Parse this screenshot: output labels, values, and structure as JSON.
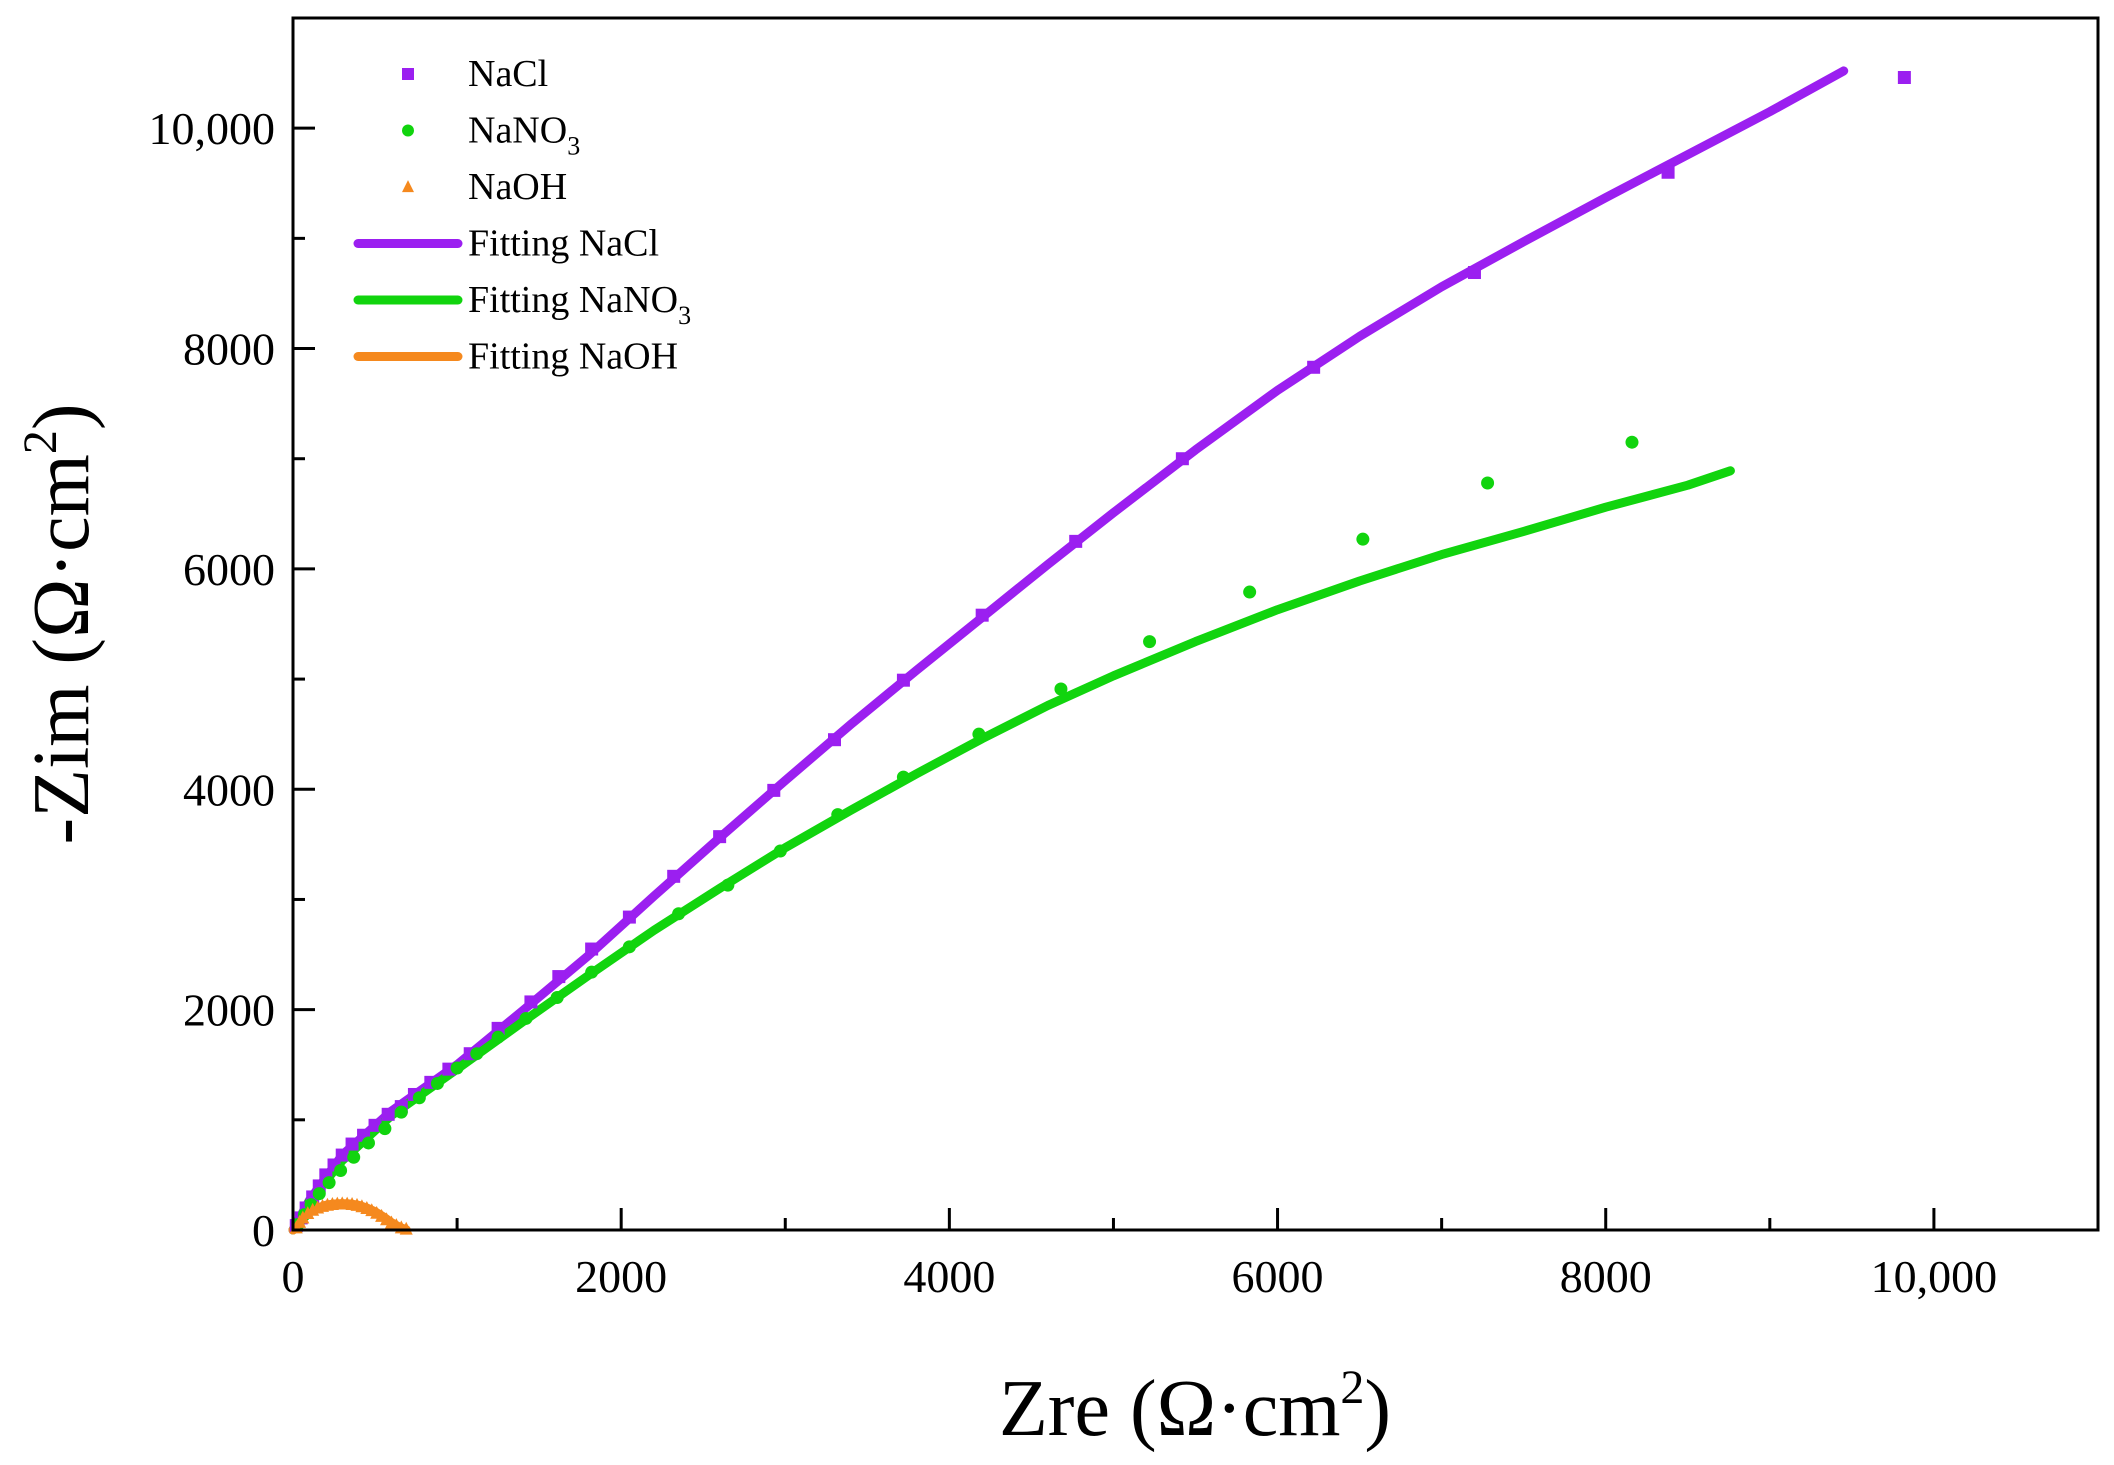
{
  "chart_data": {
    "type": "scatter",
    "title": "",
    "xlabel": "Zre (Ω·cm²)",
    "xlabel_parts": {
      "text": "Zre (Ω·cm",
      "sup": "2",
      "close": ")"
    },
    "ylabel": "-Zim (Ω·cm²)",
    "ylabel_parts": {
      "text": "-Zim (Ω·cm",
      "sup": "2",
      "close": ")"
    },
    "xlim": [
      0,
      11000
    ],
    "ylim": [
      0,
      11000
    ],
    "x_ticks": [
      {
        "value": 0,
        "label": "0"
      },
      {
        "value": 2000,
        "label": "2000"
      },
      {
        "value": 4000,
        "label": "4000"
      },
      {
        "value": 6000,
        "label": "6000"
      },
      {
        "value": 8000,
        "label": "8000"
      },
      {
        "value": 10000,
        "label": "10,000"
      }
    ],
    "y_ticks": [
      {
        "value": 0,
        "label": "0"
      },
      {
        "value": 2000,
        "label": "2000"
      },
      {
        "value": 4000,
        "label": "4000"
      },
      {
        "value": 6000,
        "label": "6000"
      },
      {
        "value": 8000,
        "label": "8000"
      },
      {
        "value": 10000,
        "label": "10,000"
      }
    ],
    "minor_tick_step": 1000,
    "legend_position": "top-left",
    "series": [
      {
        "name": "NaCl",
        "kind": "markers",
        "marker": "square",
        "color": "#9b1ff0",
        "legend": {
          "text": "NaCl",
          "sub": ""
        },
        "points": [
          [
            20,
            40
          ],
          [
            50,
            110
          ],
          [
            80,
            200
          ],
          [
            120,
            300
          ],
          [
            160,
            400
          ],
          [
            200,
            500
          ],
          [
            250,
            590
          ],
          [
            300,
            680
          ],
          [
            360,
            780
          ],
          [
            430,
            860
          ],
          [
            500,
            950
          ],
          [
            580,
            1050
          ],
          [
            660,
            1120
          ],
          [
            740,
            1230
          ],
          [
            840,
            1340
          ],
          [
            950,
            1460
          ],
          [
            1080,
            1600
          ],
          [
            1250,
            1830
          ],
          [
            1450,
            2070
          ],
          [
            1620,
            2300
          ],
          [
            1820,
            2550
          ],
          [
            2050,
            2840
          ],
          [
            2320,
            3210
          ],
          [
            2600,
            3570
          ],
          [
            2930,
            3990
          ],
          [
            3300,
            4450
          ],
          [
            3720,
            4990
          ],
          [
            4200,
            5580
          ],
          [
            4770,
            6250
          ],
          [
            5420,
            7000
          ],
          [
            6220,
            7830
          ],
          [
            7200,
            8690
          ],
          [
            8380,
            9600
          ],
          [
            9820,
            10460
          ]
        ]
      },
      {
        "name": "NaNO3",
        "kind": "markers",
        "marker": "circle",
        "color": "#11d40e",
        "legend": {
          "text": "NaNO",
          "sub": "3"
        },
        "points": [
          [
            30,
            50
          ],
          [
            70,
            140
          ],
          [
            110,
            230
          ],
          [
            160,
            330
          ],
          [
            220,
            430
          ],
          [
            290,
            540
          ],
          [
            370,
            660
          ],
          [
            460,
            790
          ],
          [
            560,
            920
          ],
          [
            660,
            1070
          ],
          [
            770,
            1200
          ],
          [
            880,
            1330
          ],
          [
            1000,
            1470
          ],
          [
            1120,
            1600
          ],
          [
            1250,
            1750
          ],
          [
            1420,
            1920
          ],
          [
            1610,
            2110
          ],
          [
            1820,
            2340
          ],
          [
            2050,
            2570
          ],
          [
            2350,
            2870
          ],
          [
            2650,
            3130
          ],
          [
            2970,
            3440
          ],
          [
            3320,
            3770
          ],
          [
            3720,
            4110
          ],
          [
            4180,
            4500
          ],
          [
            4680,
            4910
          ],
          [
            5220,
            5340
          ],
          [
            5830,
            5790
          ],
          [
            6520,
            6270
          ],
          [
            7280,
            6780
          ],
          [
            8160,
            7150
          ]
        ]
      },
      {
        "name": "NaOH",
        "kind": "markers",
        "marker": "triangle",
        "color": "#f5891e",
        "legend": {
          "text": "NaOH",
          "sub": ""
        },
        "points": [
          [
            20,
            20
          ],
          [
            40,
            70
          ],
          [
            60,
            110
          ],
          [
            90,
            150
          ],
          [
            120,
            180
          ],
          [
            150,
            200
          ],
          [
            180,
            215
          ],
          [
            210,
            225
          ],
          [
            240,
            232
          ],
          [
            270,
            236
          ],
          [
            300,
            238
          ],
          [
            330,
            236
          ],
          [
            360,
            232
          ],
          [
            390,
            224
          ],
          [
            420,
            212
          ],
          [
            450,
            196
          ],
          [
            480,
            176
          ],
          [
            510,
            152
          ],
          [
            540,
            124
          ],
          [
            570,
            94
          ],
          [
            600,
            64
          ],
          [
            630,
            40
          ],
          [
            660,
            20
          ],
          [
            690,
            8
          ]
        ]
      },
      {
        "name": "Fitting NaCl",
        "kind": "line",
        "color": "#9b1ff0",
        "legend": {
          "text": "Fitting NaCl",
          "sub": ""
        },
        "points": [
          [
            0,
            0
          ],
          [
            100,
            270
          ],
          [
            300,
            680
          ],
          [
            600,
            1080
          ],
          [
            1000,
            1500
          ],
          [
            1400,
            1990
          ],
          [
            1800,
            2490
          ],
          [
            2200,
            3030
          ],
          [
            2600,
            3560
          ],
          [
            3000,
            4080
          ],
          [
            3400,
            4590
          ],
          [
            3800,
            5080
          ],
          [
            4200,
            5560
          ],
          [
            4600,
            6040
          ],
          [
            5000,
            6510
          ],
          [
            5500,
            7080
          ],
          [
            6000,
            7620
          ],
          [
            6500,
            8110
          ],
          [
            7000,
            8560
          ],
          [
            7500,
            8970
          ],
          [
            8000,
            9370
          ],
          [
            8500,
            9760
          ],
          [
            9000,
            10150
          ],
          [
            9450,
            10520
          ]
        ]
      },
      {
        "name": "Fitting NaNO3",
        "kind": "line",
        "color": "#11d40e",
        "legend": {
          "text": "Fitting NaNO",
          "sub": "3"
        },
        "points": [
          [
            0,
            0
          ],
          [
            100,
            260
          ],
          [
            300,
            630
          ],
          [
            600,
            1040
          ],
          [
            1000,
            1460
          ],
          [
            1400,
            1890
          ],
          [
            1800,
            2310
          ],
          [
            2200,
            2720
          ],
          [
            2600,
            3100
          ],
          [
            3000,
            3470
          ],
          [
            3400,
            3810
          ],
          [
            3800,
            4140
          ],
          [
            4200,
            4460
          ],
          [
            4600,
            4760
          ],
          [
            5000,
            5030
          ],
          [
            5500,
            5340
          ],
          [
            6000,
            5630
          ],
          [
            6500,
            5890
          ],
          [
            7000,
            6130
          ],
          [
            7500,
            6340
          ],
          [
            8000,
            6560
          ],
          [
            8500,
            6760
          ],
          [
            8760,
            6890
          ]
        ]
      },
      {
        "name": "Fitting NaOH",
        "kind": "line",
        "color": "#f5891e",
        "legend": {
          "text": "Fitting NaOH",
          "sub": ""
        },
        "points": [
          [
            0,
            0
          ],
          [
            50,
            100
          ],
          [
            100,
            160
          ],
          [
            150,
            200
          ],
          [
            200,
            225
          ],
          [
            250,
            236
          ],
          [
            300,
            240
          ],
          [
            350,
            236
          ],
          [
            400,
            224
          ],
          [
            450,
            200
          ],
          [
            500,
            166
          ],
          [
            550,
            120
          ],
          [
            600,
            66
          ],
          [
            650,
            24
          ],
          [
            690,
            4
          ]
        ]
      }
    ]
  }
}
